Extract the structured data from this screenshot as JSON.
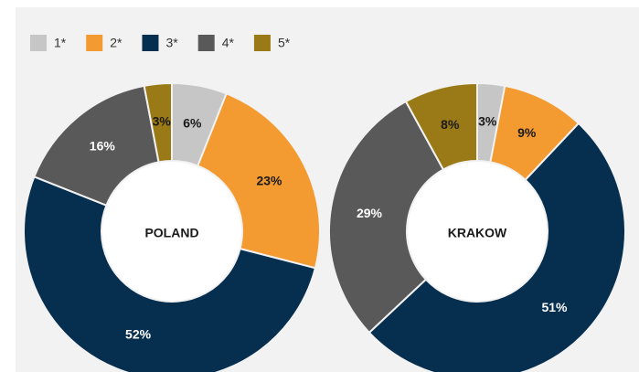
{
  "chart_data": [
    {
      "type": "pie",
      "title": "POLAND",
      "categories": [
        "1*",
        "2*",
        "3*",
        "4*",
        "5*"
      ],
      "values": [
        6,
        23,
        52,
        16,
        3
      ],
      "value_labels": [
        "6%",
        "23%",
        "52%",
        "16%",
        "3%"
      ],
      "colors": [
        "#c6c6c6",
        "#f39a30",
        "#062e4f",
        "#595959",
        "#9a7a16"
      ]
    },
    {
      "type": "pie",
      "title": "KRAKOW",
      "categories": [
        "1*",
        "2*",
        "3*",
        "4*",
        "5*"
      ],
      "values": [
        3,
        9,
        51,
        29,
        8
      ],
      "value_labels": [
        "3%",
        "9%",
        "51%",
        "29%",
        "8%"
      ],
      "colors": [
        "#c6c6c6",
        "#f39a30",
        "#062e4f",
        "#595959",
        "#9a7a16"
      ]
    }
  ]
}
